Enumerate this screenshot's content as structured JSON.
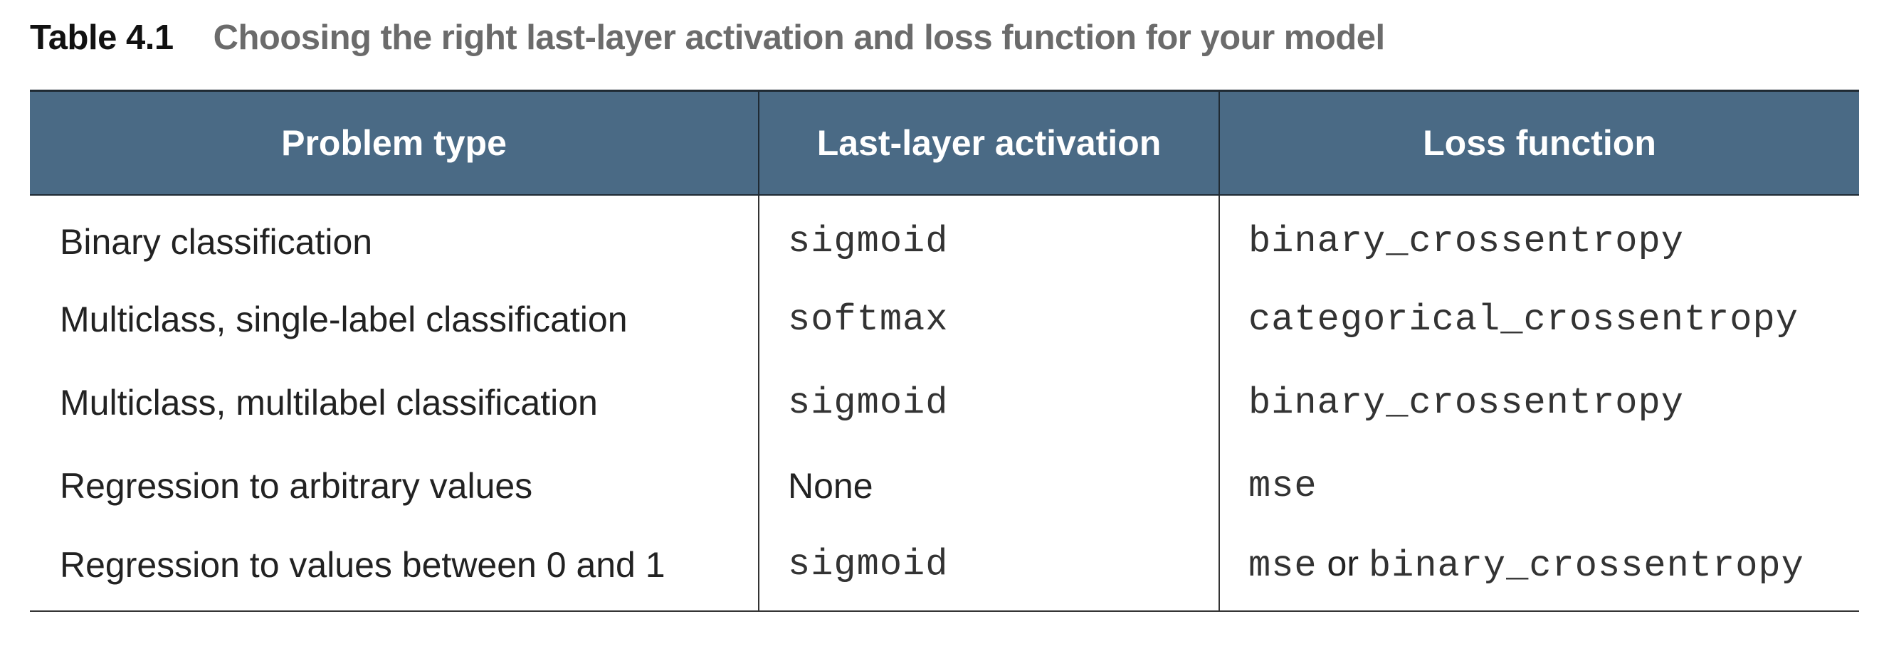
{
  "caption": {
    "label": "Table 4.1",
    "title": "Choosing the right last-layer activation and loss function for your model"
  },
  "table": {
    "headers": [
      "Problem type",
      "Last-layer activation",
      "Loss function"
    ],
    "rows": [
      {
        "problem": "Binary classification",
        "activation": "sigmoid",
        "loss": "binary_crossentropy"
      },
      {
        "problem": "Multiclass, single-label classification",
        "activation": "softmax",
        "loss": "categorical_crossentropy"
      },
      {
        "problem": "Multiclass, multilabel classification",
        "activation": "sigmoid",
        "loss": "binary_crossentropy"
      },
      {
        "problem": "Regression to arbitrary values",
        "activation": "None",
        "loss": "mse"
      },
      {
        "problem": "Regression to values between 0 and 1",
        "activation": "sigmoid",
        "loss": "mse",
        "loss_connector": "or",
        "loss_alt": "binary_crossentropy"
      }
    ]
  },
  "colors": {
    "header_bg": "#4a6a85",
    "header_text": "#ffffff",
    "caption_title": "#6b6b6b"
  }
}
